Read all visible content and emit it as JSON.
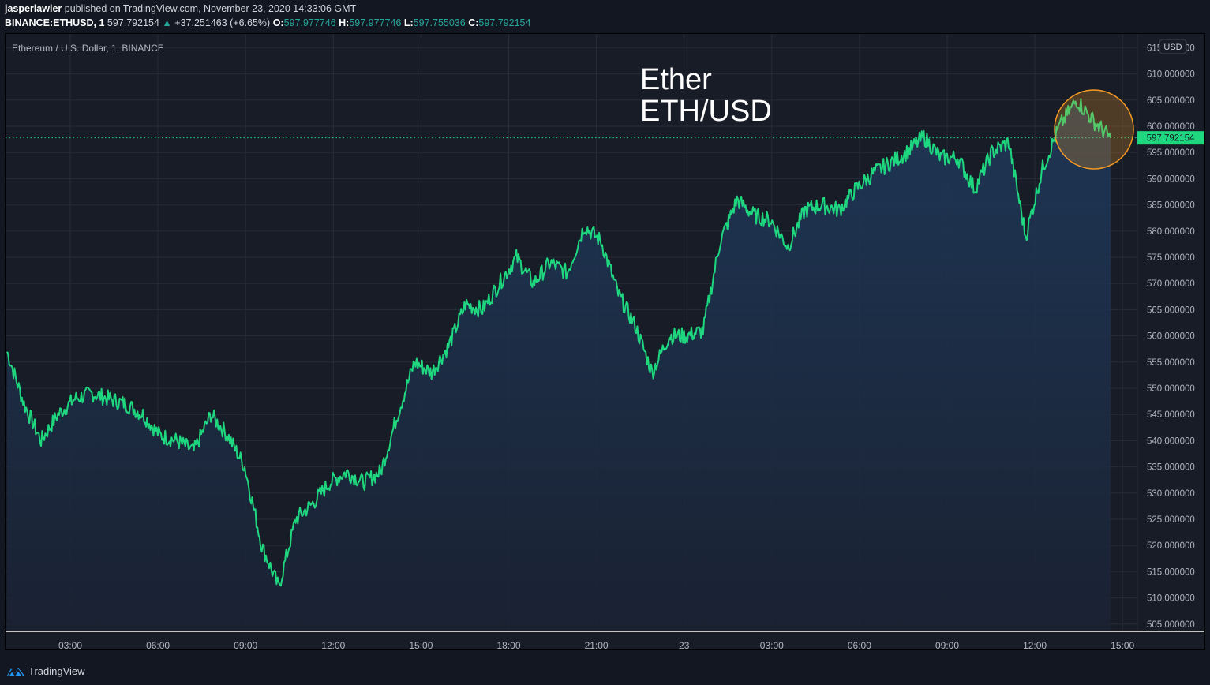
{
  "header": {
    "author": "jasperlawler",
    "published_text": "published on TradingView.com, November 23, 2020 14:33:06 GMT",
    "symbol": "BINANCE:ETHUSD, 1",
    "last_price": "597.792154",
    "change_icon": "triangle-up-icon",
    "change": "+37.251463 (+6.65%)",
    "open_label": "O:",
    "open": "597.977746",
    "high_label": "H:",
    "high": "597.977746",
    "low_label": "L:",
    "low": "597.755036",
    "close_label": "C:",
    "close": "597.792154"
  },
  "chart": {
    "legend": "Ethereum / U.S. Dollar, 1, BINANCE",
    "annotation_line1": "Ether",
    "annotation_line2": "ETH/USD",
    "currency_badge": "USD",
    "current_price_label": "597.792154",
    "colors": {
      "line": "#1ed77f",
      "background": "#181c27",
      "grid": "#262b38",
      "highlight_circle": "#f59a23",
      "price_label_bg": "#1ed77f"
    }
  },
  "footer": {
    "brand": "TradingView"
  },
  "chart_data": {
    "type": "area",
    "title": "Ethereum / U.S. Dollar, 1, BINANCE",
    "xlabel": "",
    "ylabel": "USD",
    "x_ticks": [
      "03:00",
      "06:00",
      "09:00",
      "12:00",
      "15:00",
      "18:00",
      "21:00",
      "23",
      "03:00",
      "06:00",
      "09:00",
      "12:00",
      "15:00"
    ],
    "y_ticks": [
      505,
      510,
      515,
      520,
      525,
      530,
      535,
      540,
      545,
      550,
      555,
      560,
      565,
      570,
      575,
      580,
      585,
      590,
      595,
      600,
      605,
      610,
      615
    ],
    "ylim": [
      503,
      617
    ],
    "grid": true,
    "x": [
      "00:00",
      "00:30",
      "01:00",
      "01:30",
      "02:00",
      "03:00",
      "04:00",
      "05:00",
      "06:00",
      "07:00",
      "08:00",
      "09:00",
      "10:00",
      "10:30",
      "11:00",
      "11:30",
      "11:50",
      "12:10",
      "12:30",
      "13:00",
      "13:30",
      "14:00",
      "15:00",
      "15:30",
      "16:00",
      "16:30",
      "17:00",
      "17:30",
      "18:00",
      "18:30",
      "19:00",
      "20:00",
      "20:30",
      "21:00",
      "21:30",
      "22:00",
      "22:30",
      "23:00",
      "23:30",
      "00:00",
      "00:30",
      "01:00",
      "02:00",
      "03:00",
      "03:30",
      "04:00",
      "04:30",
      "05:00",
      "06:00",
      "07:00",
      "08:00",
      "09:00",
      "09:30",
      "10:00",
      "10:30",
      "11:00",
      "11:30",
      "12:00",
      "12:30",
      "13:00",
      "13:20",
      "13:30",
      "13:45",
      "14:00",
      "14:20",
      "14:33"
    ],
    "values": [
      557,
      547,
      540,
      545,
      548,
      549,
      548,
      547,
      545,
      541,
      540,
      538,
      545,
      541,
      535,
      520,
      512,
      525,
      528,
      532,
      534,
      532,
      534,
      545,
      555,
      553,
      558,
      566,
      565,
      570,
      575,
      570,
      574,
      572,
      581,
      578,
      568,
      562,
      553,
      560,
      560,
      561,
      578,
      586,
      583,
      582,
      577,
      584,
      585,
      584,
      588,
      591,
      593,
      595,
      598,
      594,
      594,
      588,
      595,
      597,
      579,
      592,
      600,
      605,
      601,
      597.79
    ],
    "last_value": 597.792154,
    "change": 37.251463,
    "change_pct": 6.65,
    "highlight": "circle around latest peak ~605"
  }
}
